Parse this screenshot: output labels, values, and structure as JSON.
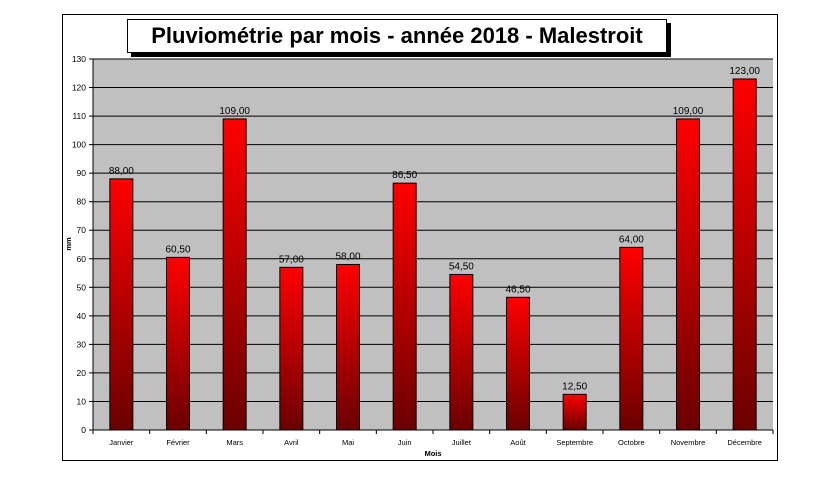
{
  "chart_data": {
    "type": "bar",
    "title": "Pluviométrie par mois - année 2018 - Malestroit",
    "xlabel": "Mois",
    "ylabel": "mm",
    "ylim": [
      0,
      130
    ],
    "yticks": [
      0,
      10,
      20,
      30,
      40,
      50,
      60,
      70,
      80,
      90,
      100,
      110,
      120,
      130
    ],
    "grid": true,
    "categories": [
      "Janvier",
      "Février",
      "Mars",
      "Avril",
      "Mai",
      "Juin",
      "Juillet",
      "Août",
      "Septembre",
      "Octobre",
      "Novembre",
      "Décembre"
    ],
    "values": [
      88,
      60.5,
      109,
      57,
      58,
      86.5,
      54.5,
      46.5,
      12.5,
      64,
      109,
      123
    ],
    "data_labels": [
      "88,00",
      "60,50",
      "109,00",
      "57,00",
      "58,00",
      "86,50",
      "54,50",
      "46,50",
      "12,50",
      "64,00",
      "109,00",
      "123,00"
    ],
    "colors": {
      "plot_bg": "#c0c0c0",
      "bar_top": "#ff0000",
      "bar_bottom": "#6a0000"
    }
  }
}
